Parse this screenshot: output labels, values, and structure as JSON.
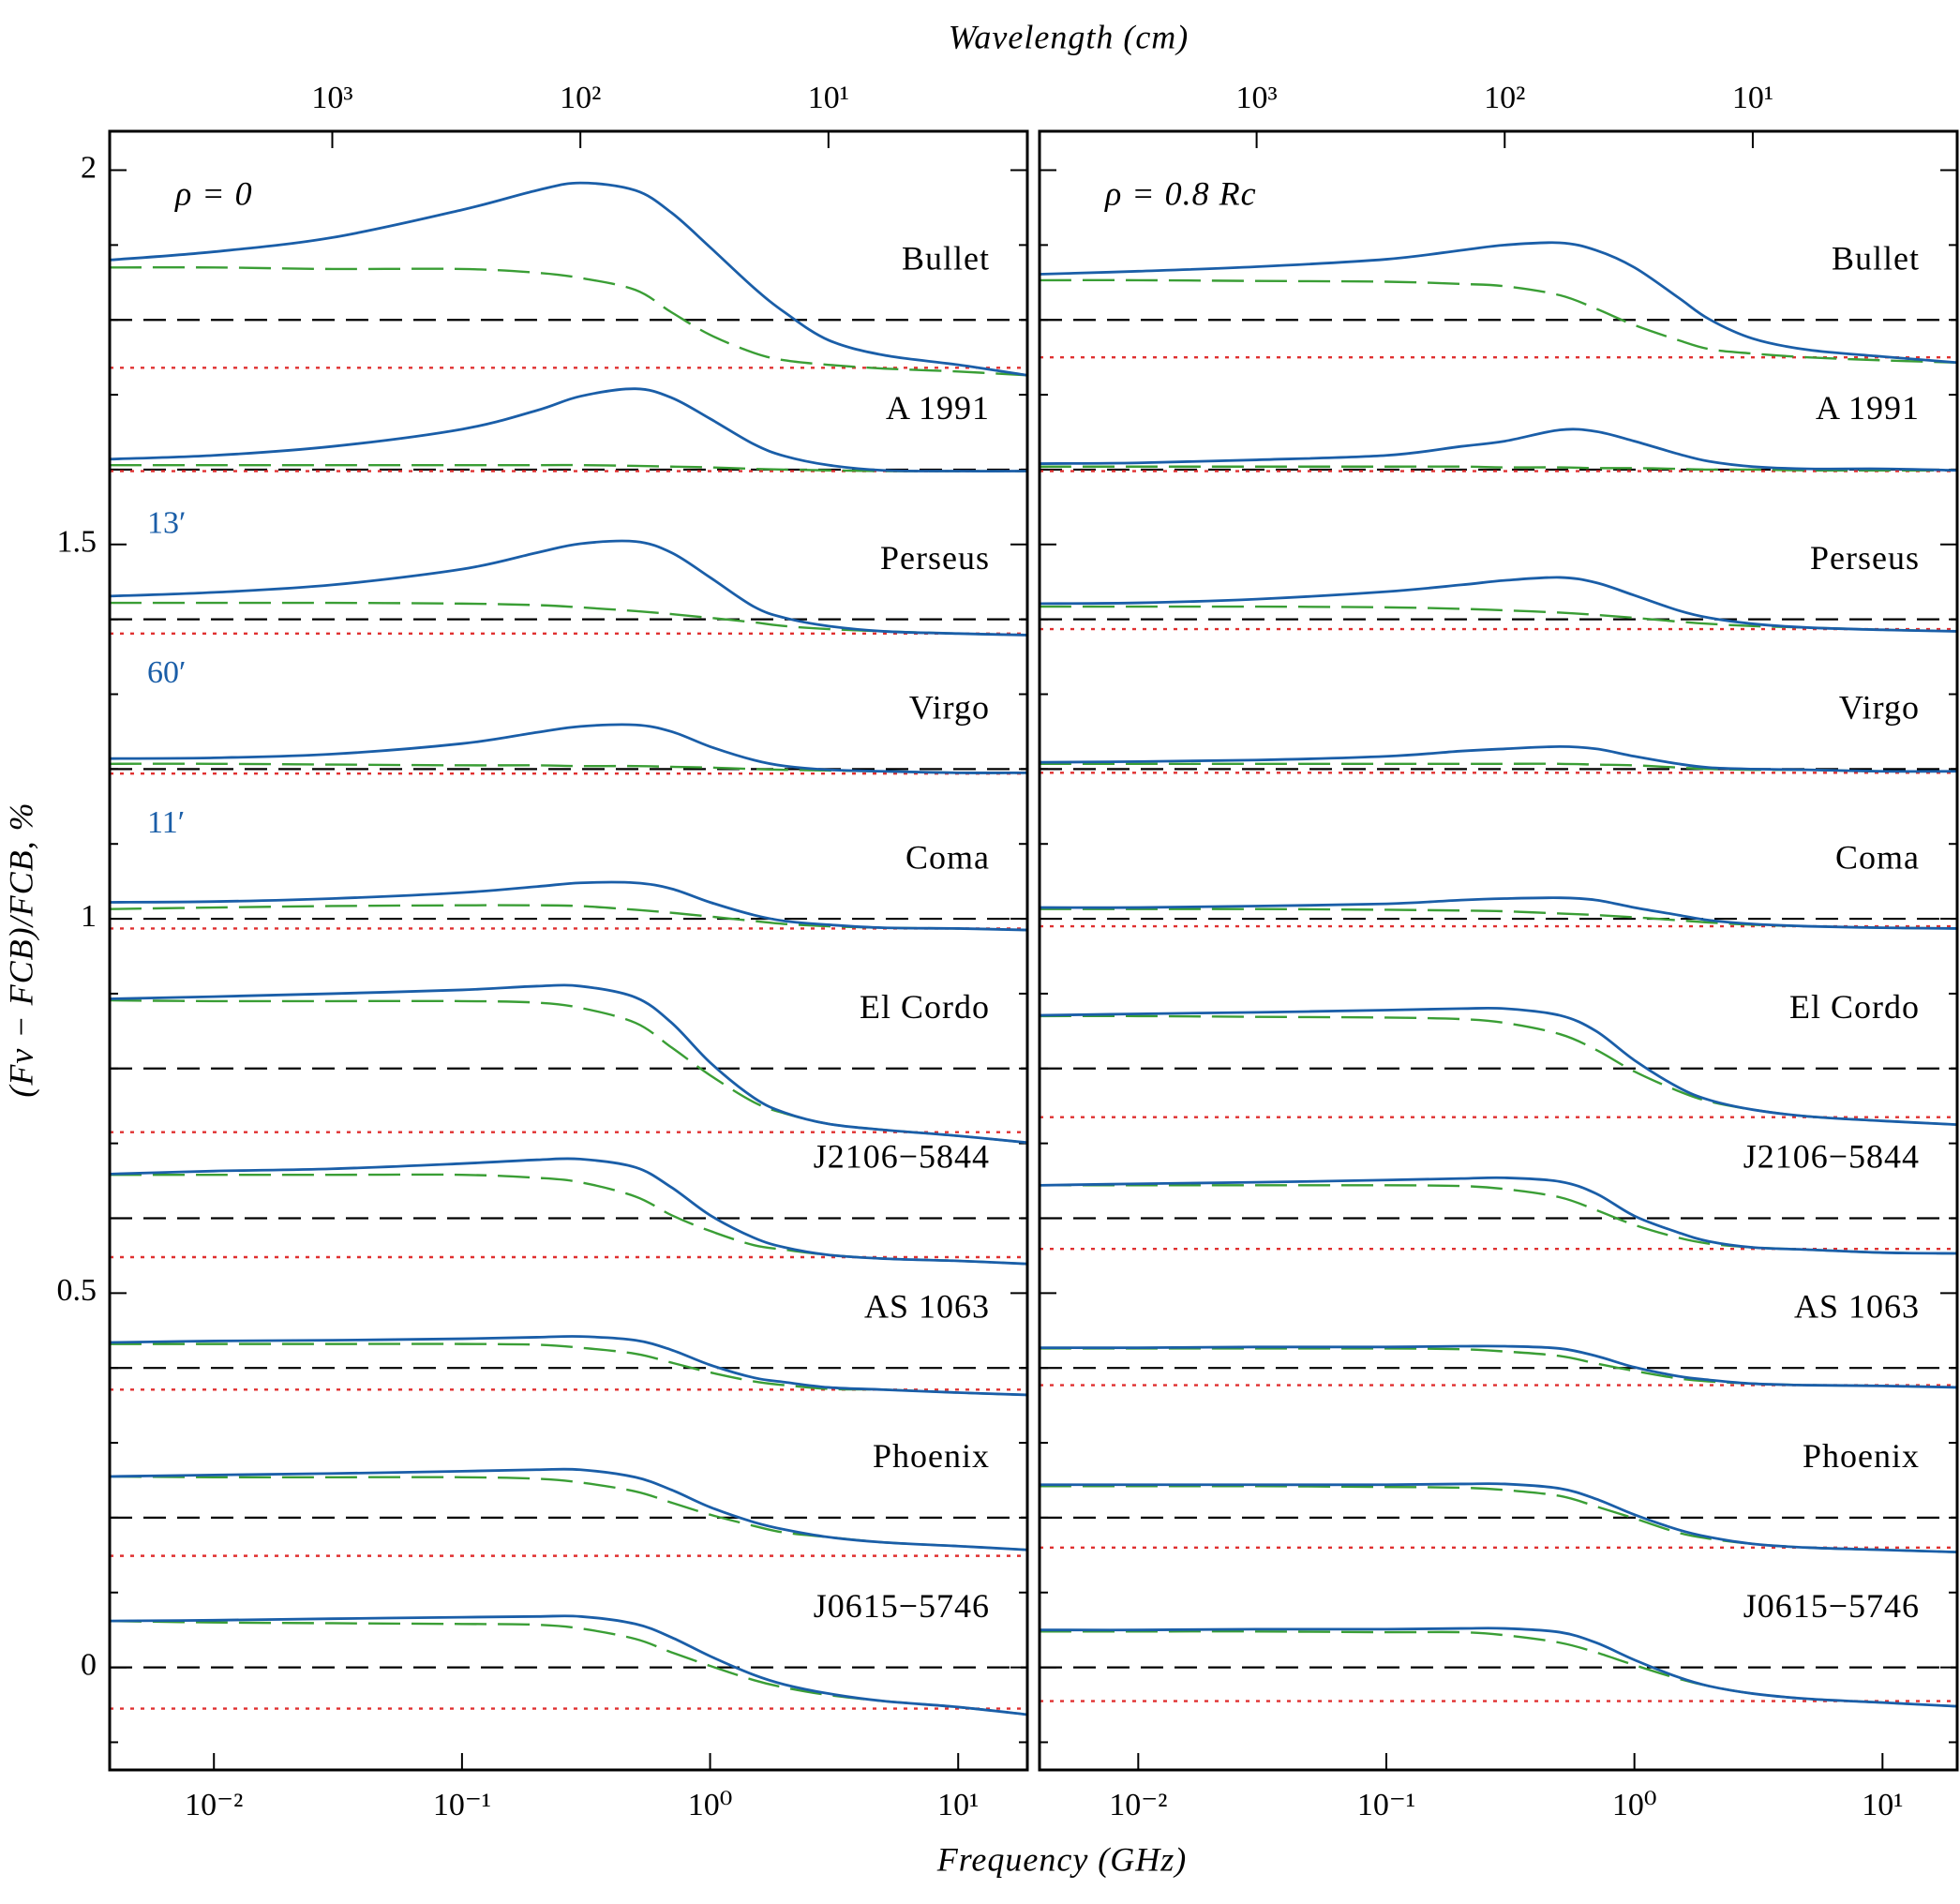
{
  "chart_data": [
    {
      "type": "line",
      "x2label": "Wavelength (cm)",
      "xlabel": "Frequency (GHz)",
      "ylabel": "(Fν − FCB)/FCB, %",
      "annotation": "ρ = 0",
      "log_x": true,
      "xlim": [
        0.0038,
        19
      ],
      "xticks": [
        {
          "value": 0.01,
          "label": "10⁻²"
        },
        {
          "value": 0.1,
          "label": "10⁻¹"
        },
        {
          "value": 1,
          "label": "10⁰"
        },
        {
          "value": 10,
          "label": "10¹"
        }
      ],
      "x2lim": [
        7895,
        1.579
      ],
      "x2ticks": [
        {
          "value": 1000,
          "label": "10³"
        },
        {
          "value": 100,
          "label": "10²"
        },
        {
          "value": 10,
          "label": "10¹"
        }
      ],
      "ylim": [
        -0.137,
        2.052
      ],
      "yticks": [
        0,
        0.5,
        1,
        1.5,
        2
      ],
      "yminorticks": [
        -0.1,
        0.1,
        0.2,
        0.3,
        0.4,
        0.6,
        0.7,
        0.8,
        0.9,
        1.1,
        1.2,
        1.3,
        1.4,
        1.6,
        1.7,
        1.8,
        1.9
      ],
      "show_ytick_labels": true,
      "colors": {
        "total": "#1a5ea8",
        "dashed": "#3a9e35",
        "baseline": "#000000",
        "dotted": "#e03030"
      },
      "x": [
        0.0038,
        0.01,
        0.03,
        0.1,
        0.2,
        0.3,
        0.5,
        0.7,
        1,
        1.5,
        2,
        3,
        5,
        10,
        19
      ],
      "clusters": [
        {
          "name": "Bullet",
          "baseline": 1.8,
          "dotted": 1.736,
          "total": [
            1.88,
            1.891,
            1.91,
            1.947,
            1.973,
            1.983,
            1.973,
            1.943,
            1.897,
            1.843,
            1.81,
            1.773,
            1.753,
            1.74,
            1.726
          ],
          "dashed": [
            1.87,
            1.87,
            1.868,
            1.868,
            1.863,
            1.856,
            1.84,
            1.81,
            1.78,
            1.756,
            1.746,
            1.74,
            1.735,
            1.731,
            1.726
          ]
        },
        {
          "name": "A 1991",
          "baseline": 1.6,
          "dotted": 1.598,
          "total": [
            1.614,
            1.619,
            1.631,
            1.654,
            1.679,
            1.698,
            1.708,
            1.696,
            1.668,
            1.634,
            1.618,
            1.606,
            1.599,
            1.598,
            1.598
          ],
          "dashed": [
            1.606,
            1.606,
            1.606,
            1.606,
            1.606,
            1.606,
            1.605,
            1.604,
            1.603,
            1.601,
            1.6,
            1.599,
            1.598,
            1.598,
            1.598
          ]
        },
        {
          "name": "Perseus",
          "baseline": 1.4,
          "dotted": 1.381,
          "size_label": "13′",
          "total": [
            1.431,
            1.436,
            1.446,
            1.467,
            1.489,
            1.501,
            1.504,
            1.489,
            1.456,
            1.417,
            1.402,
            1.391,
            1.384,
            1.381,
            1.379
          ],
          "dashed": [
            1.422,
            1.422,
            1.422,
            1.421,
            1.419,
            1.416,
            1.411,
            1.407,
            1.402,
            1.396,
            1.391,
            1.387,
            1.384,
            1.381,
            1.379
          ]
        },
        {
          "name": "Virgo",
          "baseline": 1.2,
          "dotted": 1.194,
          "size_label": "60′",
          "total": [
            1.214,
            1.215,
            1.22,
            1.234,
            1.249,
            1.257,
            1.259,
            1.25,
            1.23,
            1.212,
            1.204,
            1.199,
            1.197,
            1.195,
            1.195
          ],
          "dashed": [
            1.207,
            1.207,
            1.206,
            1.205,
            1.205,
            1.204,
            1.204,
            1.203,
            1.202,
            1.2,
            1.199,
            1.198,
            1.197,
            1.195,
            1.195
          ]
        },
        {
          "name": "Coma",
          "baseline": 1,
          "dotted": 0.987,
          "size_label": "11′",
          "total": [
            1.022,
            1.023,
            1.027,
            1.035,
            1.043,
            1.048,
            1.048,
            1.04,
            1.022,
            1.005,
            0.997,
            0.992,
            0.988,
            0.987,
            0.985
          ],
          "dashed": [
            1.013,
            1.015,
            1.017,
            1.018,
            1.018,
            1.017,
            1.012,
            1.008,
            1.003,
            0.997,
            0.993,
            0.99,
            0.988,
            0.987,
            0.985
          ]
        },
        {
          "name": "El Cordo",
          "baseline": 0.8,
          "dotted": 0.715,
          "total": [
            0.893,
            0.896,
            0.9,
            0.905,
            0.91,
            0.91,
            0.895,
            0.861,
            0.808,
            0.761,
            0.741,
            0.726,
            0.718,
            0.71,
            0.701
          ],
          "dashed": [
            0.891,
            0.89,
            0.89,
            0.89,
            0.888,
            0.881,
            0.861,
            0.828,
            0.791,
            0.755,
            0.74,
            0.726,
            0.718,
            0.71,
            0.701
          ]
        },
        {
          "name": "J2106−5844",
          "baseline": 0.6,
          "dotted": 0.548,
          "total": [
            0.659,
            0.663,
            0.666,
            0.673,
            0.678,
            0.679,
            0.668,
            0.641,
            0.604,
            0.574,
            0.561,
            0.551,
            0.546,
            0.543,
            0.539
          ],
          "dashed": [
            0.658,
            0.658,
            0.658,
            0.658,
            0.654,
            0.648,
            0.629,
            0.604,
            0.583,
            0.564,
            0.558,
            0.551,
            0.546,
            0.543,
            0.539
          ]
        },
        {
          "name": "AS 1063",
          "baseline": 0.4,
          "dotted": 0.371,
          "total": [
            0.434,
            0.436,
            0.437,
            0.439,
            0.441,
            0.442,
            0.437,
            0.424,
            0.404,
            0.387,
            0.381,
            0.374,
            0.371,
            0.367,
            0.364
          ],
          "dashed": [
            0.432,
            0.432,
            0.432,
            0.432,
            0.431,
            0.427,
            0.419,
            0.407,
            0.394,
            0.382,
            0.377,
            0.372,
            0.371,
            0.367,
            0.364
          ]
        },
        {
          "name": "Phoenix",
          "baseline": 0.2,
          "dotted": 0.149,
          "total": [
            0.255,
            0.257,
            0.259,
            0.262,
            0.264,
            0.264,
            0.254,
            0.237,
            0.214,
            0.194,
            0.184,
            0.174,
            0.167,
            0.162,
            0.157
          ],
          "dashed": [
            0.255,
            0.254,
            0.254,
            0.254,
            0.252,
            0.247,
            0.235,
            0.22,
            0.204,
            0.189,
            0.18,
            0.174,
            0.167,
            0.162,
            0.157
          ]
        },
        {
          "name": "J0615−5746",
          "baseline": 0,
          "dotted": -0.055,
          "total": [
            0.062,
            0.063,
            0.065,
            0.067,
            0.068,
            0.068,
            0.058,
            0.04,
            0.015,
            -0.01,
            -0.023,
            -0.035,
            -0.045,
            -0.053,
            -0.063
          ],
          "dashed": [
            0.062,
            0.06,
            0.059,
            0.058,
            0.057,
            0.052,
            0.038,
            0.02,
            0.002,
            -0.017,
            -0.027,
            -0.037,
            -0.045,
            -0.053,
            -0.063
          ]
        }
      ]
    },
    {
      "type": "line",
      "annotation": "ρ = 0.8 Rc",
      "log_x": true,
      "xlim": [
        0.004,
        20
      ],
      "xticks": [
        {
          "value": 0.01,
          "label": "10⁻²"
        },
        {
          "value": 0.1,
          "label": "10⁻¹"
        },
        {
          "value": 1,
          "label": "10⁰"
        },
        {
          "value": 10,
          "label": "10¹"
        }
      ],
      "x2lim": [
        7500,
        1.5
      ],
      "x2ticks": [
        {
          "value": 1000,
          "label": "10³"
        },
        {
          "value": 100,
          "label": "10²"
        },
        {
          "value": 10,
          "label": "10¹"
        }
      ],
      "ylim": [
        -0.137,
        2.052
      ],
      "yticks": [
        0,
        0.5,
        1,
        1.5,
        2
      ],
      "yminorticks": [
        -0.1,
        0.1,
        0.2,
        0.3,
        0.4,
        0.6,
        0.7,
        0.8,
        0.9,
        1.1,
        1.2,
        1.3,
        1.4,
        1.6,
        1.7,
        1.8,
        1.9
      ],
      "show_ytick_labels": false,
      "colors": {
        "total": "#1a5ea8",
        "dashed": "#3a9e35",
        "baseline": "#000000",
        "dotted": "#e03030"
      },
      "x": [
        0.004,
        0.01,
        0.03,
        0.1,
        0.2,
        0.3,
        0.5,
        0.7,
        1,
        1.5,
        2,
        3,
        5,
        10,
        20
      ],
      "clusters": [
        {
          "name": "Bullet",
          "baseline": 1.8,
          "dotted": 1.75,
          "total": [
            1.861,
            1.865,
            1.871,
            1.881,
            1.893,
            1.9,
            1.903,
            1.893,
            1.87,
            1.83,
            1.801,
            1.775,
            1.76,
            1.751,
            1.743
          ],
          "dashed": [
            1.853,
            1.853,
            1.852,
            1.851,
            1.848,
            1.845,
            1.833,
            1.815,
            1.793,
            1.773,
            1.761,
            1.755,
            1.75,
            1.746,
            1.743
          ]
        },
        {
          "name": "A 1991",
          "baseline": 1.6,
          "dotted": 1.598,
          "total": [
            1.608,
            1.609,
            1.613,
            1.619,
            1.631,
            1.638,
            1.653,
            1.651,
            1.638,
            1.621,
            1.611,
            1.604,
            1.601,
            1.601,
            1.599
          ],
          "dashed": [
            1.604,
            1.604,
            1.604,
            1.604,
            1.604,
            1.603,
            1.603,
            1.602,
            1.602,
            1.601,
            1.6,
            1.6,
            1.599,
            1.599,
            1.599
          ]
        },
        {
          "name": "Perseus",
          "baseline": 1.4,
          "dotted": 1.387,
          "total": [
            1.421,
            1.422,
            1.427,
            1.437,
            1.446,
            1.452,
            1.456,
            1.449,
            1.432,
            1.412,
            1.402,
            1.394,
            1.389,
            1.386,
            1.384
          ],
          "dashed": [
            1.417,
            1.417,
            1.417,
            1.416,
            1.414,
            1.412,
            1.409,
            1.406,
            1.402,
            1.397,
            1.394,
            1.391,
            1.389,
            1.386,
            1.384
          ]
        },
        {
          "name": "Virgo",
          "baseline": 1.2,
          "dotted": 1.195,
          "total": [
            1.209,
            1.21,
            1.212,
            1.217,
            1.224,
            1.227,
            1.23,
            1.227,
            1.217,
            1.207,
            1.202,
            1.2,
            1.199,
            1.197,
            1.197
          ],
          "dashed": [
            1.207,
            1.207,
            1.207,
            1.207,
            1.207,
            1.207,
            1.207,
            1.206,
            1.205,
            1.202,
            1.2,
            1.199,
            1.199,
            1.197,
            1.197
          ]
        },
        {
          "name": "Coma",
          "baseline": 1,
          "dotted": 0.99,
          "total": [
            1.015,
            1.015,
            1.017,
            1.02,
            1.025,
            1.027,
            1.028,
            1.025,
            1.015,
            1.005,
            0.998,
            0.993,
            0.99,
            0.988,
            0.987
          ],
          "dashed": [
            1.013,
            1.013,
            1.013,
            1.012,
            1.011,
            1.01,
            1.007,
            1.005,
            1.002,
            0.998,
            0.995,
            0.992,
            0.99,
            0.988,
            0.987
          ]
        },
        {
          "name": "El Cordo",
          "baseline": 0.8,
          "dotted": 0.735,
          "total": [
            0.871,
            0.873,
            0.875,
            0.878,
            0.88,
            0.88,
            0.871,
            0.85,
            0.811,
            0.775,
            0.758,
            0.745,
            0.736,
            0.73,
            0.725
          ],
          "dashed": [
            0.87,
            0.87,
            0.869,
            0.868,
            0.866,
            0.861,
            0.846,
            0.825,
            0.796,
            0.77,
            0.756,
            0.745,
            0.736,
            0.73,
            0.725
          ]
        },
        {
          "name": "J2106−5844",
          "baseline": 0.6,
          "dotted": 0.559,
          "total": [
            0.644,
            0.646,
            0.648,
            0.651,
            0.653,
            0.654,
            0.649,
            0.633,
            0.603,
            0.581,
            0.569,
            0.561,
            0.558,
            0.554,
            0.553
          ],
          "dashed": [
            0.644,
            0.644,
            0.644,
            0.644,
            0.643,
            0.639,
            0.628,
            0.611,
            0.591,
            0.574,
            0.566,
            0.561,
            0.558,
            0.554,
            0.553
          ]
        },
        {
          "name": "AS 1063",
          "baseline": 0.4,
          "dotted": 0.377,
          "total": [
            0.427,
            0.427,
            0.428,
            0.428,
            0.429,
            0.429,
            0.426,
            0.416,
            0.401,
            0.389,
            0.384,
            0.379,
            0.377,
            0.376,
            0.374
          ],
          "dashed": [
            0.426,
            0.426,
            0.426,
            0.426,
            0.425,
            0.422,
            0.416,
            0.406,
            0.396,
            0.386,
            0.382,
            0.379,
            0.377,
            0.376,
            0.374
          ]
        },
        {
          "name": "Phoenix",
          "baseline": 0.2,
          "dotted": 0.16,
          "total": [
            0.244,
            0.244,
            0.244,
            0.244,
            0.245,
            0.245,
            0.239,
            0.225,
            0.204,
            0.184,
            0.174,
            0.165,
            0.16,
            0.157,
            0.154
          ],
          "dashed": [
            0.242,
            0.242,
            0.242,
            0.241,
            0.24,
            0.237,
            0.229,
            0.215,
            0.199,
            0.18,
            0.172,
            0.165,
            0.16,
            0.157,
            0.154
          ]
        },
        {
          "name": "J0615−5746",
          "baseline": 0,
          "dotted": -0.045,
          "total": [
            0.05,
            0.05,
            0.051,
            0.051,
            0.052,
            0.052,
            0.047,
            0.033,
            0.01,
            -0.013,
            -0.025,
            -0.035,
            -0.042,
            -0.047,
            -0.052
          ],
          "dashed": [
            0.048,
            0.048,
            0.048,
            0.047,
            0.047,
            0.043,
            0.033,
            0.02,
            0.003,
            -0.015,
            -0.025,
            -0.035,
            -0.042,
            -0.047,
            -0.052
          ]
        }
      ]
    }
  ]
}
